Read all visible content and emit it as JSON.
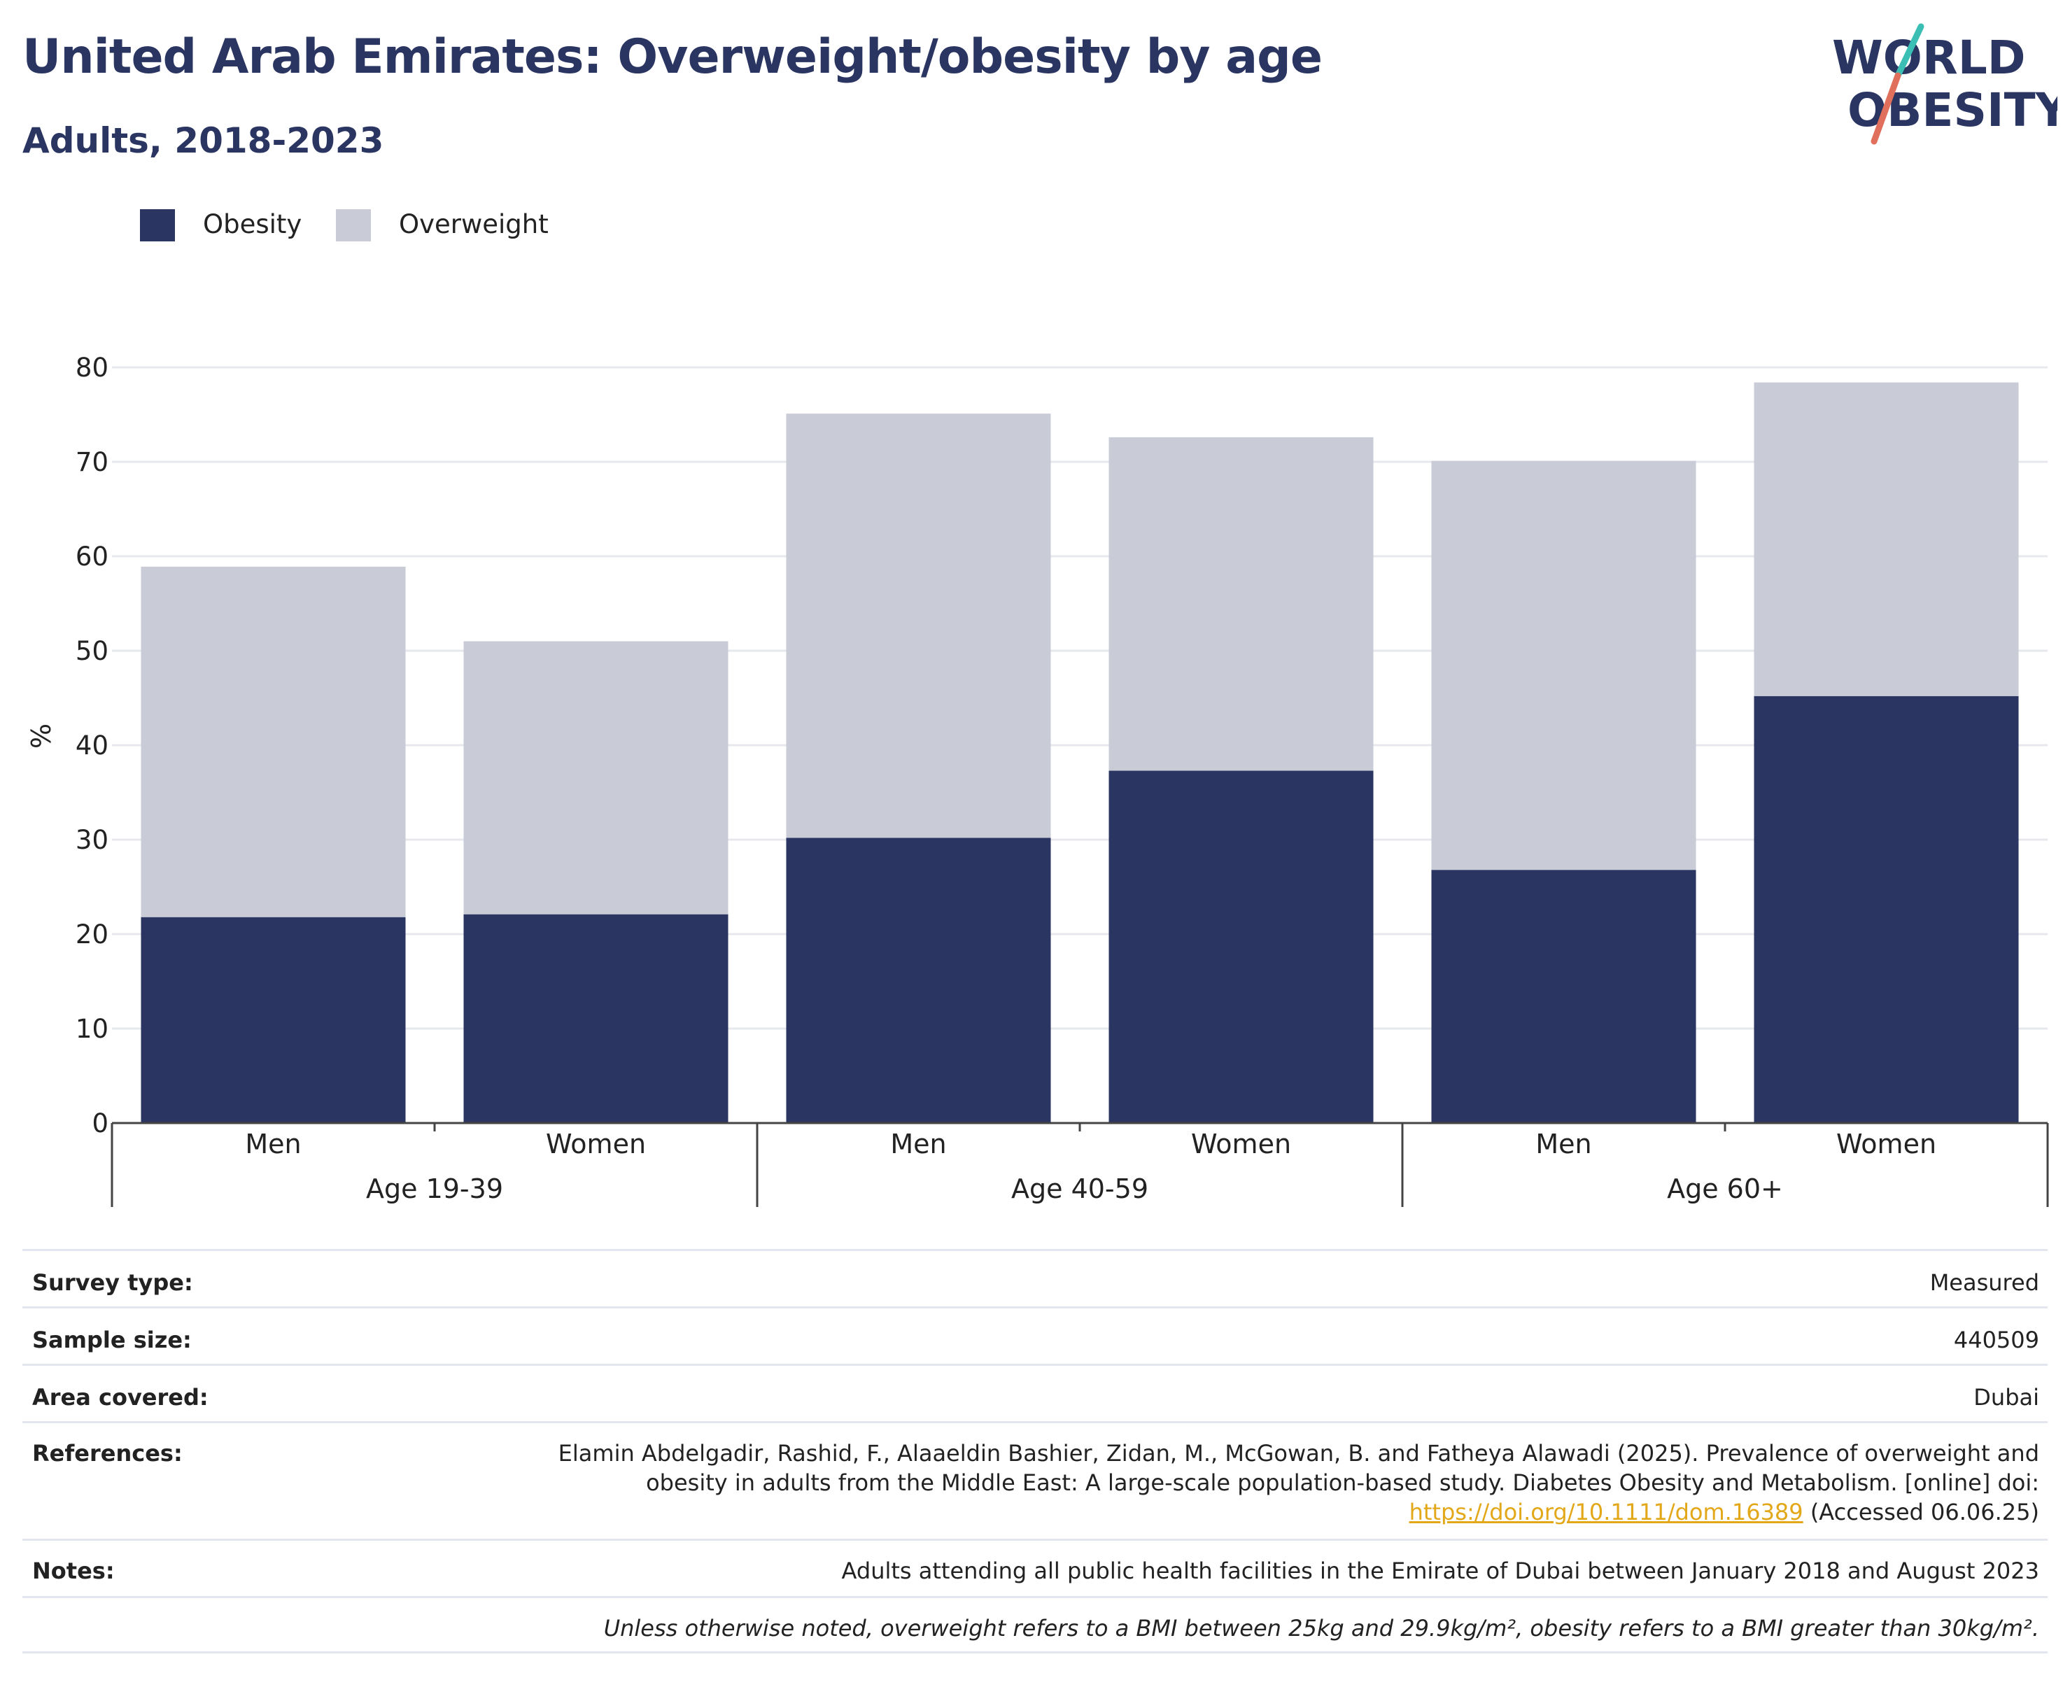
{
  "header": {
    "title": "United Arab Emirates: Overweight/obesity by age",
    "subtitle": "Adults, 2018-2023"
  },
  "logo": {
    "line1": "WORLD",
    "line2": "OBESITY"
  },
  "legend": {
    "items": [
      {
        "label": "Obesity",
        "color": "#2a3561"
      },
      {
        "label": "Overweight",
        "color": "#c9cbd7"
      }
    ]
  },
  "chart_data": {
    "type": "bar",
    "stacked": true,
    "ylabel": "%",
    "ylim": [
      0,
      80
    ],
    "yticks": [
      0,
      10,
      20,
      30,
      40,
      50,
      60,
      70,
      80
    ],
    "grid": true,
    "legend_position": "top-left",
    "groups": [
      "Age 19-39",
      "Age 40-59",
      "Age 60+"
    ],
    "categories": [
      "Men",
      "Women",
      "Men",
      "Women",
      "Men",
      "Women"
    ],
    "category_group": [
      0,
      0,
      1,
      1,
      2,
      2
    ],
    "series": [
      {
        "name": "Obesity",
        "color": "#2a3561",
        "values": [
          21.8,
          22.1,
          30.2,
          37.3,
          26.8,
          45.2
        ]
      },
      {
        "name": "Overweight",
        "color": "#c9cbd7",
        "values": [
          37.1,
          28.9,
          44.9,
          35.3,
          43.3,
          33.2
        ]
      }
    ]
  },
  "info": {
    "survey_type_label": "Survey type:",
    "survey_type_value": "Measured",
    "sample_size_label": "Sample size:",
    "sample_size_value": "440509",
    "area_label": "Area covered:",
    "area_value": "Dubai",
    "references_label": "References:",
    "references_line1": "Elamin Abdelgadir, Rashid, F., Alaaeldin Bashier, Zidan, M., McGowan, B. and Fatheya Alawadi (2025). Prevalence of overweight and",
    "references_line2": "obesity in adults from the Middle East: A large-scale population-based study. Diabetes Obesity and Metabolism. [online] doi:",
    "references_link": "https://doi.org/10.1111/dom.16389",
    "references_accessed": " (Accessed 06.06.25)",
    "notes_label": "Notes:",
    "notes_value": "Adults attending all public health facilities in the Emirate of Dubai between January 2018 and August 2023",
    "footnote": "Unless otherwise noted, overweight refers to a BMI between 25kg and 29.9kg/m², obesity refers to a BMI greater than 30kg/m²."
  }
}
